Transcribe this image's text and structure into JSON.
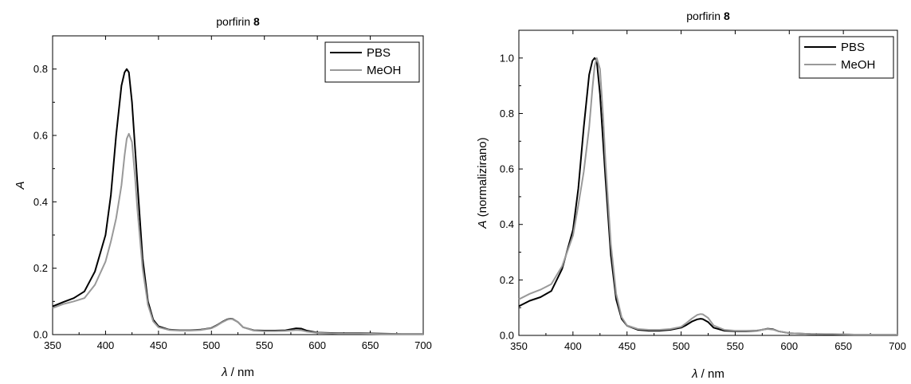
{
  "chart_data": [
    {
      "type": "line",
      "title": "porfirin",
      "title_bold": "8",
      "xlabel_symbol": "λ",
      "xlabel_unit": " / nm",
      "ylabel_symbol": "A",
      "ylabel_rest": "",
      "xlim": [
        350,
        700
      ],
      "ylim": [
        0,
        0.9
      ],
      "xticks": [
        350,
        400,
        450,
        500,
        550,
        600,
        650,
        700
      ],
      "yticks": [
        0.0,
        0.2,
        0.4,
        0.6,
        0.8
      ],
      "ytick_labels": [
        "0.0",
        "0.2",
        "0.4",
        "0.6",
        "0.8"
      ],
      "legend_position": "top-right",
      "series": [
        {
          "name": "PBS",
          "color": "#000000",
          "x": [
            350,
            360,
            370,
            380,
            390,
            400,
            405,
            410,
            415,
            418,
            420,
            422,
            425,
            430,
            435,
            440,
            445,
            450,
            460,
            470,
            480,
            490,
            500,
            505,
            510,
            515,
            518,
            520,
            525,
            530,
            540,
            550,
            560,
            570,
            575,
            580,
            585,
            590,
            600,
            620,
            640,
            660,
            680,
            700
          ],
          "y": [
            0.085,
            0.098,
            0.11,
            0.13,
            0.19,
            0.3,
            0.42,
            0.6,
            0.75,
            0.79,
            0.8,
            0.79,
            0.7,
            0.46,
            0.23,
            0.1,
            0.045,
            0.025,
            0.015,
            0.013,
            0.013,
            0.015,
            0.02,
            0.028,
            0.038,
            0.046,
            0.048,
            0.047,
            0.038,
            0.022,
            0.013,
            0.012,
            0.012,
            0.013,
            0.016,
            0.019,
            0.018,
            0.012,
            0.006,
            0.004,
            0.004,
            0.003,
            0.002,
            0.002
          ]
        },
        {
          "name": "MeOH",
          "color": "#999999",
          "x": [
            350,
            360,
            370,
            380,
            390,
            400,
            405,
            410,
            415,
            418,
            420,
            422,
            425,
            428,
            430,
            435,
            440,
            445,
            450,
            460,
            470,
            480,
            490,
            500,
            505,
            510,
            515,
            518,
            520,
            525,
            530,
            540,
            550,
            560,
            570,
            580,
            585,
            590,
            600,
            620,
            640,
            660,
            680,
            700
          ],
          "y": [
            0.08,
            0.092,
            0.1,
            0.11,
            0.15,
            0.22,
            0.28,
            0.35,
            0.45,
            0.54,
            0.59,
            0.605,
            0.58,
            0.47,
            0.38,
            0.2,
            0.09,
            0.04,
            0.022,
            0.014,
            0.012,
            0.012,
            0.014,
            0.019,
            0.027,
            0.037,
            0.045,
            0.047,
            0.046,
            0.038,
            0.022,
            0.012,
            0.01,
            0.01,
            0.011,
            0.014,
            0.013,
            0.009,
            0.005,
            0.003,
            0.003,
            0.002,
            0.002,
            0.002
          ]
        }
      ]
    },
    {
      "type": "line",
      "title": "porfirin",
      "title_bold": "8",
      "xlabel_symbol": "λ",
      "xlabel_unit": " / nm",
      "ylabel_symbol": "A",
      "ylabel_rest": " (normalizirano)",
      "xlim": [
        350,
        700
      ],
      "ylim": [
        0,
        1.1
      ],
      "xticks": [
        350,
        400,
        450,
        500,
        550,
        600,
        650,
        700
      ],
      "yticks": [
        0.0,
        0.2,
        0.4,
        0.6,
        0.8,
        1.0
      ],
      "ytick_labels": [
        "0.0",
        "0.2",
        "0.4",
        "0.6",
        "0.8",
        "1.0"
      ],
      "legend_position": "top-right",
      "series": [
        {
          "name": "PBS",
          "color": "#000000",
          "x": [
            350,
            360,
            370,
            380,
            390,
            400,
            405,
            410,
            415,
            418,
            420,
            422,
            425,
            430,
            435,
            440,
            445,
            450,
            460,
            470,
            480,
            490,
            500,
            505,
            510,
            515,
            518,
            520,
            525,
            530,
            540,
            550,
            560,
            570,
            580,
            585,
            590,
            600,
            620,
            640,
            660,
            680,
            700
          ],
          "y": [
            0.105,
            0.125,
            0.138,
            0.16,
            0.24,
            0.38,
            0.53,
            0.75,
            0.94,
            0.99,
            1.0,
            0.99,
            0.87,
            0.57,
            0.29,
            0.13,
            0.06,
            0.035,
            0.02,
            0.017,
            0.017,
            0.02,
            0.028,
            0.038,
            0.05,
            0.058,
            0.06,
            0.059,
            0.048,
            0.028,
            0.017,
            0.015,
            0.015,
            0.017,
            0.024,
            0.022,
            0.015,
            0.008,
            0.005,
            0.004,
            0.003,
            0.003,
            0.002
          ]
        },
        {
          "name": "MeOH",
          "color": "#999999",
          "x": [
            350,
            360,
            370,
            380,
            390,
            400,
            405,
            410,
            415,
            418,
            420,
            422,
            425,
            428,
            430,
            435,
            440,
            445,
            450,
            460,
            470,
            480,
            490,
            500,
            505,
            510,
            515,
            518,
            520,
            525,
            530,
            540,
            550,
            560,
            570,
            580,
            585,
            590,
            600,
            620,
            640,
            660,
            680,
            700
          ],
          "y": [
            0.13,
            0.15,
            0.165,
            0.185,
            0.25,
            0.36,
            0.47,
            0.59,
            0.75,
            0.89,
            0.97,
            1.0,
            0.96,
            0.78,
            0.63,
            0.33,
            0.15,
            0.066,
            0.036,
            0.023,
            0.02,
            0.02,
            0.023,
            0.031,
            0.045,
            0.061,
            0.074,
            0.077,
            0.076,
            0.063,
            0.036,
            0.02,
            0.017,
            0.017,
            0.018,
            0.023,
            0.021,
            0.015,
            0.008,
            0.005,
            0.005,
            0.003,
            0.003,
            0.003
          ]
        }
      ]
    }
  ]
}
